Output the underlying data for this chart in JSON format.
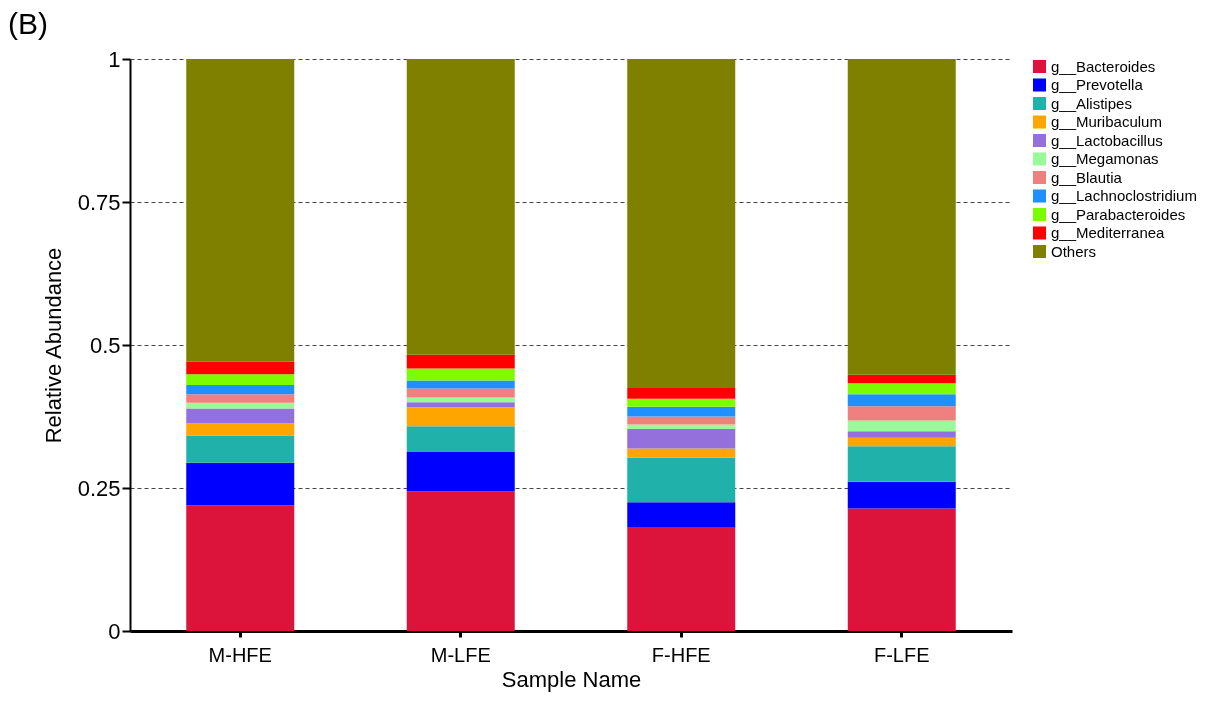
{
  "chart_data": {
    "type": "bar",
    "stacked": true,
    "annotations": [
      "(B)"
    ],
    "xlabel": "Sample Name",
    "ylabel": "Relative Abundance",
    "categories": [
      "M-HFE",
      "M-LFE",
      "F-HFE",
      "F-LFE"
    ],
    "ylim": [
      0,
      1
    ],
    "yticks": [
      0,
      0.25,
      0.5,
      0.75,
      1
    ],
    "grid": "y",
    "legend": "right",
    "series": [
      {
        "name": "g__Bacteroides",
        "color": "#dc143c",
        "values": [
          0.22,
          0.244,
          0.182,
          0.214
        ]
      },
      {
        "name": "g__Prevotella",
        "color": "#0000ff",
        "values": [
          0.074,
          0.069,
          0.043,
          0.047
        ]
      },
      {
        "name": "g__Alistipes",
        "color": "#20b2aa",
        "values": [
          0.048,
          0.045,
          0.078,
          0.062
        ]
      },
      {
        "name": "g__Muribaculum",
        "color": "#ffa500",
        "values": [
          0.021,
          0.033,
          0.016,
          0.015
        ]
      },
      {
        "name": "g__Lactobacillus",
        "color": "#9370db",
        "values": [
          0.026,
          0.009,
          0.034,
          0.011
        ]
      },
      {
        "name": "g__Megamonas",
        "color": "#98fb98",
        "values": [
          0.01,
          0.008,
          0.008,
          0.019
        ]
      },
      {
        "name": "g__Blautia",
        "color": "#f08080",
        "values": [
          0.015,
          0.016,
          0.014,
          0.025
        ]
      },
      {
        "name": "g__Lachnoclostridium",
        "color": "#1e90ff",
        "values": [
          0.016,
          0.014,
          0.017,
          0.021
        ]
      },
      {
        "name": "g__Parabacteroides",
        "color": "#7cfc00",
        "values": [
          0.019,
          0.021,
          0.014,
          0.019
        ]
      },
      {
        "name": "g__Mediterranea",
        "color": "#ff0000",
        "values": [
          0.022,
          0.024,
          0.019,
          0.015
        ]
      },
      {
        "name": "Others",
        "color": "#808000",
        "values": [
          0.529,
          0.517,
          0.575,
          0.552
        ]
      }
    ]
  }
}
